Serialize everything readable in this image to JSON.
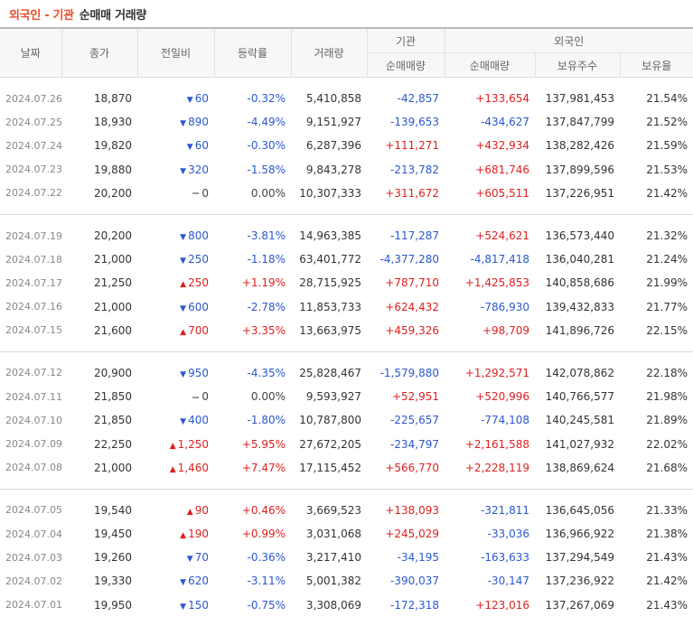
{
  "title": {
    "part1": "외국인 - 기관",
    "part2": "순매매 거래량"
  },
  "headers": {
    "date": "날짜",
    "close": "종가",
    "change": "전일비",
    "rate": "등락률",
    "volume": "거래량",
    "inst_group": "기관",
    "inst_net": "순매매량",
    "foreign_group": "외국인",
    "foreign_net": "순매매량",
    "foreign_hold": "보유주수",
    "foreign_ratio": "보유율"
  },
  "colors": {
    "up": "#e01f1f",
    "down": "#2b58d0",
    "title_accent": "#e94e28"
  },
  "groups": [
    [
      {
        "date": "2024.07.26",
        "close": "18,870",
        "dir": "down",
        "change": "60",
        "rate": "-0.32%",
        "volume": "5,410,858",
        "inst": "-42,857",
        "foreign": "+133,654",
        "hold": "137,981,453",
        "ratio": "21.54%"
      },
      {
        "date": "2024.07.25",
        "close": "18,930",
        "dir": "down",
        "change": "890",
        "rate": "-4.49%",
        "volume": "9,151,927",
        "inst": "-139,653",
        "foreign": "-434,627",
        "hold": "137,847,799",
        "ratio": "21.52%"
      },
      {
        "date": "2024.07.24",
        "close": "19,820",
        "dir": "down",
        "change": "60",
        "rate": "-0.30%",
        "volume": "6,287,396",
        "inst": "+111,271",
        "foreign": "+432,934",
        "hold": "138,282,426",
        "ratio": "21.59%"
      },
      {
        "date": "2024.07.23",
        "close": "19,880",
        "dir": "down",
        "change": "320",
        "rate": "-1.58%",
        "volume": "9,843,278",
        "inst": "-213,782",
        "foreign": "+681,746",
        "hold": "137,899,596",
        "ratio": "21.53%"
      },
      {
        "date": "2024.07.22",
        "close": "20,200",
        "dir": "flat",
        "change": "0",
        "rate": "0.00%",
        "volume": "10,307,333",
        "inst": "+311,672",
        "foreign": "+605,511",
        "hold": "137,226,951",
        "ratio": "21.42%"
      }
    ],
    [
      {
        "date": "2024.07.19",
        "close": "20,200",
        "dir": "down",
        "change": "800",
        "rate": "-3.81%",
        "volume": "14,963,385",
        "inst": "-117,287",
        "foreign": "+524,621",
        "hold": "136,573,440",
        "ratio": "21.32%"
      },
      {
        "date": "2024.07.18",
        "close": "21,000",
        "dir": "down",
        "change": "250",
        "rate": "-1.18%",
        "volume": "63,401,772",
        "inst": "-4,377,280",
        "foreign": "-4,817,418",
        "hold": "136,040,281",
        "ratio": "21.24%"
      },
      {
        "date": "2024.07.17",
        "close": "21,250",
        "dir": "up",
        "change": "250",
        "rate": "+1.19%",
        "volume": "28,715,925",
        "inst": "+787,710",
        "foreign": "+1,425,853",
        "hold": "140,858,686",
        "ratio": "21.99%"
      },
      {
        "date": "2024.07.16",
        "close": "21,000",
        "dir": "down",
        "change": "600",
        "rate": "-2.78%",
        "volume": "11,853,733",
        "inst": "+624,432",
        "foreign": "-786,930",
        "hold": "139,432,833",
        "ratio": "21.77%"
      },
      {
        "date": "2024.07.15",
        "close": "21,600",
        "dir": "up",
        "change": "700",
        "rate": "+3.35%",
        "volume": "13,663,975",
        "inst": "+459,326",
        "foreign": "+98,709",
        "hold": "141,896,726",
        "ratio": "22.15%"
      }
    ],
    [
      {
        "date": "2024.07.12",
        "close": "20,900",
        "dir": "down",
        "change": "950",
        "rate": "-4.35%",
        "volume": "25,828,467",
        "inst": "-1,579,880",
        "foreign": "+1,292,571",
        "hold": "142,078,862",
        "ratio": "22.18%"
      },
      {
        "date": "2024.07.11",
        "close": "21,850",
        "dir": "flat",
        "change": "0",
        "rate": "0.00%",
        "volume": "9,593,927",
        "inst": "+52,951",
        "foreign": "+520,996",
        "hold": "140,766,577",
        "ratio": "21.98%"
      },
      {
        "date": "2024.07.10",
        "close": "21,850",
        "dir": "down",
        "change": "400",
        "rate": "-1.80%",
        "volume": "10,787,800",
        "inst": "-225,657",
        "foreign": "-774,108",
        "hold": "140,245,581",
        "ratio": "21.89%"
      },
      {
        "date": "2024.07.09",
        "close": "22,250",
        "dir": "up",
        "change": "1,250",
        "rate": "+5.95%",
        "volume": "27,672,205",
        "inst": "-234,797",
        "foreign": "+2,161,588",
        "hold": "141,027,932",
        "ratio": "22.02%"
      },
      {
        "date": "2024.07.08",
        "close": "21,000",
        "dir": "up",
        "change": "1,460",
        "rate": "+7.47%",
        "volume": "17,115,452",
        "inst": "+566,770",
        "foreign": "+2,228,119",
        "hold": "138,869,624",
        "ratio": "21.68%"
      }
    ],
    [
      {
        "date": "2024.07.05",
        "close": "19,540",
        "dir": "up",
        "change": "90",
        "rate": "+0.46%",
        "volume": "3,669,523",
        "inst": "+138,093",
        "foreign": "-321,811",
        "hold": "136,645,056",
        "ratio": "21.33%"
      },
      {
        "date": "2024.07.04",
        "close": "19,450",
        "dir": "up",
        "change": "190",
        "rate": "+0.99%",
        "volume": "3,031,068",
        "inst": "+245,029",
        "foreign": "-33,036",
        "hold": "136,966,922",
        "ratio": "21.38%"
      },
      {
        "date": "2024.07.03",
        "close": "19,260",
        "dir": "down",
        "change": "70",
        "rate": "-0.36%",
        "volume": "3,217,410",
        "inst": "-34,195",
        "foreign": "-163,633",
        "hold": "137,294,549",
        "ratio": "21.43%"
      },
      {
        "date": "2024.07.02",
        "close": "19,330",
        "dir": "down",
        "change": "620",
        "rate": "-3.11%",
        "volume": "5,001,382",
        "inst": "-390,037",
        "foreign": "-30,147",
        "hold": "137,236,922",
        "ratio": "21.42%"
      },
      {
        "date": "2024.07.01",
        "close": "19,950",
        "dir": "down",
        "change": "150",
        "rate": "-0.75%",
        "volume": "3,308,069",
        "inst": "-172,318",
        "foreign": "+123,016",
        "hold": "137,267,069",
        "ratio": "21.43%"
      }
    ]
  ]
}
